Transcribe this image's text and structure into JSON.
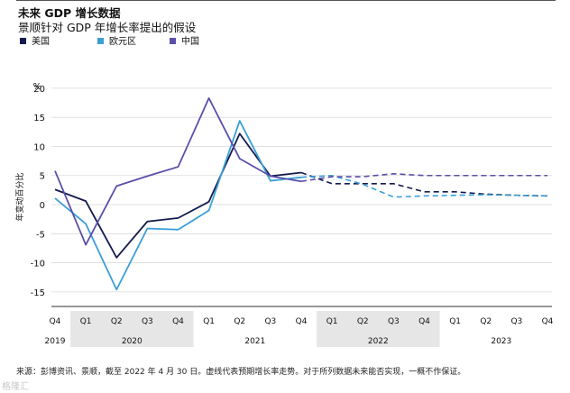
{
  "header": {
    "title": "未来 GDP 增长数据",
    "subtitle": "景顺针对 GDP 年增长率提出的假设"
  },
  "legend": [
    {
      "label": "美国",
      "color": "#141a4e"
    },
    {
      "label": "欧元区",
      "color": "#3a9fd6"
    },
    {
      "label": "中国",
      "color": "#5a4faa"
    }
  ],
  "footer": {
    "source": "来源：彭博资讯、景顺，截至 2022 年 4 月 30 日。虚线代表预期增长率走势。对于所列数据未来能否实现，一概不作保证。",
    "watermark": "格隆汇"
  },
  "chart_data": {
    "type": "line",
    "y_unit": "%",
    "ylabel": "年变动百分比",
    "ylim": [
      -17.5,
      22
    ],
    "y_ticks": [
      20,
      15,
      10,
      5,
      0,
      -5,
      -10,
      -15
    ],
    "quarters": [
      "Q4",
      "Q1",
      "Q2",
      "Q3",
      "Q4",
      "Q1",
      "Q2",
      "Q3",
      "Q4",
      "Q1",
      "Q2",
      "Q3",
      "Q4",
      "Q1",
      "Q2",
      "Q3",
      "Q4"
    ],
    "years": [
      {
        "label": "2019",
        "start": 0,
        "end": 0,
        "shaded": false
      },
      {
        "label": "2020",
        "start": 1,
        "end": 4,
        "shaded": true
      },
      {
        "label": "2021",
        "start": 5,
        "end": 8,
        "shaded": false
      },
      {
        "label": "2022",
        "start": 9,
        "end": 12,
        "shaded": true
      },
      {
        "label": "2023",
        "start": 13,
        "end": 16,
        "shaded": false
      }
    ],
    "forecast_start_index": 9,
    "series": [
      {
        "name": "美国",
        "color": "#141a4e",
        "values": [
          2.6,
          0.6,
          -9.1,
          -2.9,
          -2.3,
          0.5,
          12.2,
          4.9,
          5.5,
          3.6,
          3.6,
          3.6,
          2.2,
          2.2,
          1.8,
          1.6,
          1.5
        ]
      },
      {
        "name": "欧元区",
        "color": "#3a9fd6",
        "values": [
          1.1,
          -3.3,
          -14.6,
          -4.1,
          -4.3,
          -1.0,
          14.4,
          4.1,
          4.7,
          5.0,
          3.5,
          1.3,
          1.5,
          1.6,
          1.7,
          1.6,
          1.5
        ]
      },
      {
        "name": "中国",
        "color": "#5a4faa",
        "values": [
          5.8,
          -6.9,
          3.2,
          4.9,
          6.5,
          18.3,
          7.9,
          4.9,
          4.0,
          4.8,
          4.8,
          5.3,
          5.0,
          5.0,
          5.0,
          5.0,
          5.0
        ]
      }
    ]
  }
}
